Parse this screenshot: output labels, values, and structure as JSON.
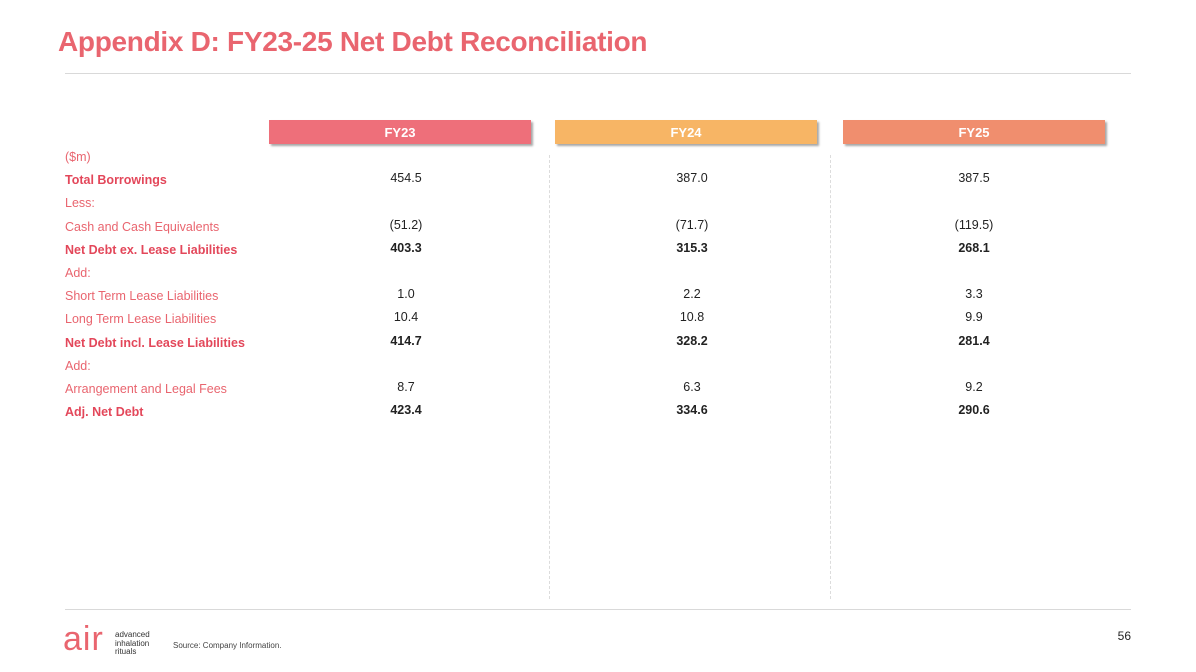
{
  "header": {
    "title": "Appendix D: FY23-25 Net Debt Reconciliation"
  },
  "table": {
    "columns": [
      {
        "label": "FY23",
        "color": "#ee6f7a"
      },
      {
        "label": "FY24",
        "color": "#f7b565"
      },
      {
        "label": "FY25",
        "color": "#f08e6e"
      }
    ],
    "rows": [
      {
        "label": "($m)"
      },
      {
        "label": "Total Borrowings",
        "values": [
          "454.5",
          "387.0",
          "387.5"
        ],
        "label_bold": true
      },
      {
        "label": "Less:"
      },
      {
        "label": "Cash and Cash Equivalents",
        "values": [
          "(51.2)",
          "(71.7)",
          "(119.5)"
        ]
      },
      {
        "label": "Net Debt ex. Lease Liabilities",
        "values": [
          "403.3",
          "315.3",
          "268.1"
        ],
        "label_bold": true,
        "values_bold": true
      },
      {
        "label": "Add:"
      },
      {
        "label": "Short Term Lease Liabilities",
        "values": [
          "1.0",
          "2.2",
          "3.3"
        ]
      },
      {
        "label": "Long Term Lease Liabilities",
        "values": [
          "10.4",
          "10.8",
          "9.9"
        ]
      },
      {
        "label": "Net Debt incl. Lease Liabilities",
        "values": [
          "414.7",
          "328.2",
          "281.4"
        ],
        "label_bold": true,
        "values_bold": true
      },
      {
        "label": "Add:"
      },
      {
        "label": "Arrangement and Legal Fees",
        "values": [
          "8.7",
          "6.3",
          "9.2"
        ]
      },
      {
        "label": "Adj. Net Debt",
        "values": [
          "423.4",
          "334.6",
          "290.6"
        ],
        "label_bold": true,
        "values_bold": true
      }
    ]
  },
  "footer": {
    "source": "Source: Company Information.",
    "page_number": "56",
    "logo": {
      "mark": "air",
      "tagline": [
        "advanced",
        "inhalation",
        "rituals"
      ]
    }
  }
}
